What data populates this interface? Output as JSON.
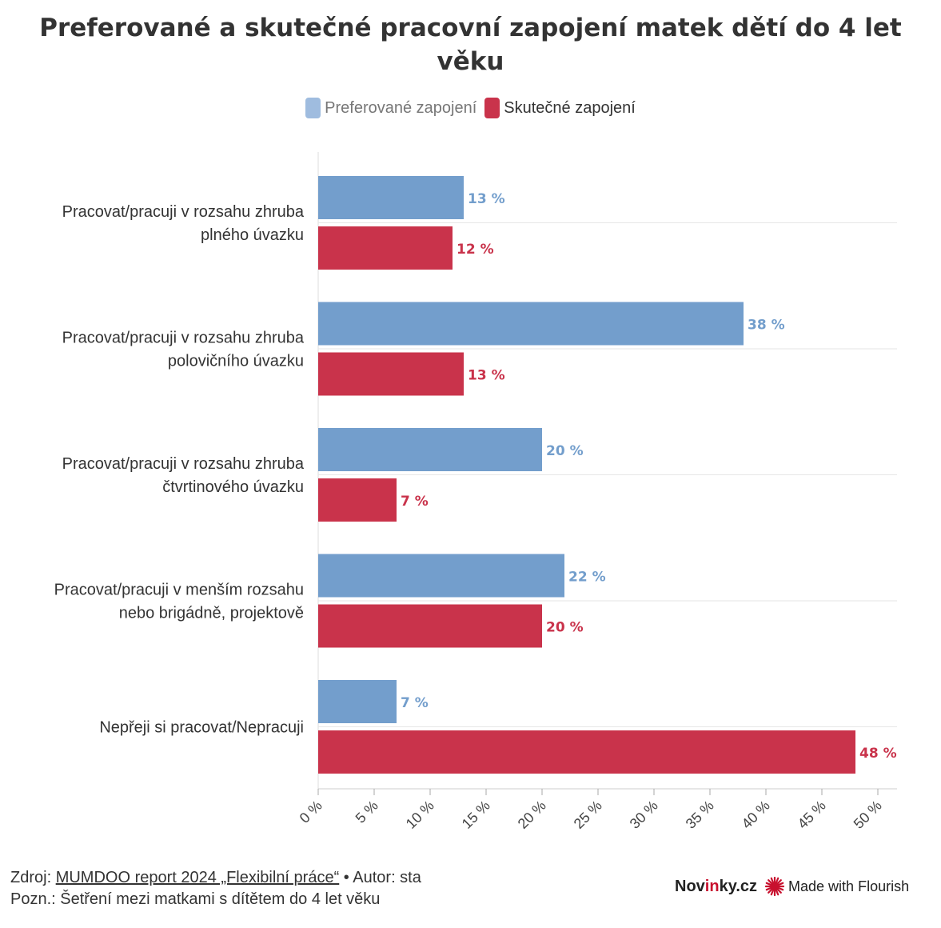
{
  "title_lines": [
    "Preferované a skutečné pracovní zapojení matek dětí do 4 let",
    "věku"
  ],
  "legend": [
    {
      "label": "Preferované zapojení",
      "color": "#739ecc"
    },
    {
      "label": "Skutečné zapojení",
      "color": "#c9334b"
    }
  ],
  "chart_data": {
    "type": "bar",
    "orientation": "horizontal",
    "title": "Preferované a skutečné pracovní zapojení matek dětí do 4 let věku",
    "categories": [
      [
        "Pracovat/pracuji v rozsahu zhruba",
        "plného úvazku"
      ],
      [
        "Pracovat/pracuji v rozsahu zhruba",
        "polovičního úvazku"
      ],
      [
        "Pracovat/pracuji v rozsahu zhruba",
        "čtvrtinového úvazku"
      ],
      [
        "Pracovat/pracuji v menším rozsahu",
        "nebo brigádně, projektově"
      ],
      [
        "Nepřeji si pracovat/Nepracuji"
      ]
    ],
    "series": [
      {
        "name": "Preferované zapojení",
        "color": "#739ecc",
        "values": [
          13,
          38,
          20,
          22,
          7
        ],
        "labels": [
          "13 %",
          "38 %",
          "20 %",
          "22 %",
          "7 %"
        ]
      },
      {
        "name": "Skutečné zapojení",
        "color": "#c9334b",
        "values": [
          12,
          13,
          7,
          20,
          48
        ],
        "labels": [
          "12 %",
          "13 %",
          "7 %",
          "20 %",
          "48 %"
        ]
      }
    ],
    "xlim": [
      0,
      50
    ],
    "xticks": [
      0,
      5,
      10,
      15,
      20,
      25,
      30,
      35,
      40,
      45,
      50
    ],
    "xtick_labels": [
      "0 %",
      "5 %",
      "10 %",
      "15 %",
      "20 %",
      "25 %",
      "30 %",
      "35 %",
      "40 %",
      "45 %",
      "50 %"
    ],
    "legend_position": "top-center"
  },
  "footer": {
    "source_prefix": "Zdroj: ",
    "source_link": "MUMDOO report 2024 „Flexibilní práce“",
    "author": " • Autor: sta",
    "note": "Pozn.: Šetření mezi matkami s dítětem do 4 let věku"
  },
  "brand": {
    "novinky_a": "Nov",
    "novinky_b": "in",
    "novinky_c": "ky.cz",
    "flourish": "Made with Flourish"
  }
}
